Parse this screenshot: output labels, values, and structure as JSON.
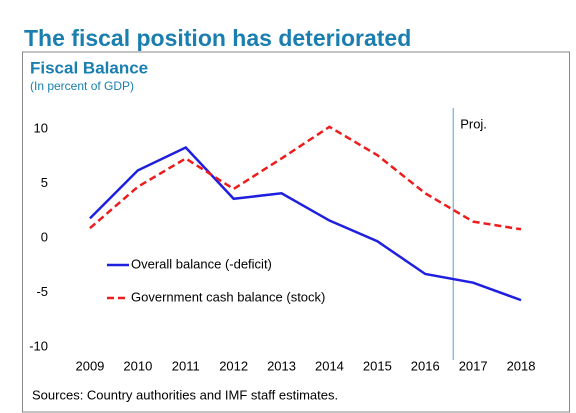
{
  "chart_data": {
    "type": "line",
    "title": "The fiscal position has deteriorated",
    "subtitle": "Fiscal Balance",
    "unit_note": "(In percent of GDP)",
    "source": "Sources: Country authorities and IMF staff estimates.",
    "projection_label": "Proj.",
    "categories": [
      "2009",
      "2010",
      "2011",
      "2012",
      "2013",
      "2014",
      "2015",
      "2016",
      "2017",
      "2018"
    ],
    "series": [
      {
        "name": "Overall balance (-deficit)",
        "color": "#1f1fe0",
        "dash": "solid",
        "values": [
          1.8,
          6.2,
          8.3,
          3.6,
          4.1,
          1.6,
          -0.3,
          -3.3,
          -4.1,
          -5.7
        ]
      },
      {
        "name": "Government cash balance (stock)",
        "color": "#ee1c1c",
        "dash": "dashed",
        "values": [
          0.9,
          4.7,
          7.3,
          4.5,
          7.3,
          10.2,
          7.6,
          4.1,
          1.5,
          0.8
        ]
      }
    ],
    "ylim": [
      -10,
      10
    ],
    "yticks": [
      -10,
      -5,
      0,
      5,
      10
    ],
    "grid": false,
    "legend": "left"
  }
}
